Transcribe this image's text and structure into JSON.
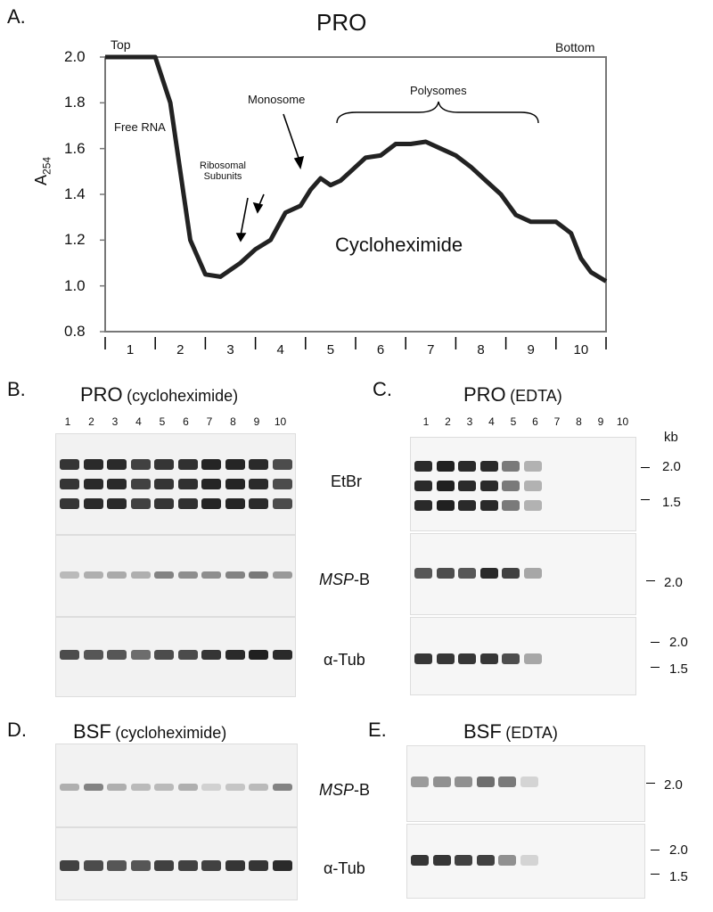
{
  "panelA": {
    "letter": "A.",
    "title": "PRO",
    "top_label": "Top",
    "bottom_label": "Bottom",
    "ylabel_base": "A",
    "ylabel_sub": "254",
    "yticks": [
      "2.0",
      "1.8",
      "1.6",
      "1.4",
      "1.2",
      "1.0",
      "0.8"
    ],
    "fractions": [
      "1",
      "2",
      "3",
      "4",
      "5",
      "6",
      "7",
      "8",
      "9",
      "10"
    ],
    "annotations": {
      "free_rna": "Free RNA",
      "ribosomal_1": "Ribosomal",
      "ribosomal_2": "Subunits",
      "monosome": "Monosome",
      "polysomes": "Polysomes",
      "cycloheximide": "Cycloheximide"
    }
  },
  "chart_data": {
    "type": "line",
    "ylabel": "A254",
    "ylim": [
      0.8,
      2.0
    ],
    "x": [
      0,
      0.5,
      1.0,
      1.3,
      1.5,
      1.7,
      2.0,
      2.3,
      2.7,
      3.0,
      3.3,
      3.6,
      3.9,
      4.1,
      4.3,
      4.5,
      4.7,
      4.9,
      5.2,
      5.5,
      5.8,
      6.1,
      6.4,
      6.7,
      7.0,
      7.3,
      7.6,
      7.9,
      8.2,
      8.5,
      8.7,
      9.0,
      9.3,
      9.5,
      9.7,
      10.0
    ],
    "values": [
      2.0,
      2.0,
      2.0,
      1.8,
      1.5,
      1.2,
      1.05,
      1.04,
      1.1,
      1.16,
      1.2,
      1.32,
      1.35,
      1.42,
      1.47,
      1.44,
      1.46,
      1.5,
      1.56,
      1.57,
      1.62,
      1.62,
      1.63,
      1.6,
      1.57,
      1.52,
      1.46,
      1.4,
      1.31,
      1.28,
      1.28,
      1.28,
      1.23,
      1.12,
      1.06,
      1.02
    ]
  },
  "panelB": {
    "letter": "B.",
    "title": "PRO",
    "condition": "(cycloheximide)",
    "lanes": [
      "1",
      "2",
      "3",
      "4",
      "5",
      "6",
      "7",
      "8",
      "9",
      "10"
    ],
    "probe_etbr": "EtBr",
    "probe_msp_italic": "MSP",
    "probe_msp_rest": "-B",
    "probe_tub": "α-Tub"
  },
  "panelC": {
    "letter": "C.",
    "title": "PRO",
    "condition": "(EDTA)",
    "lanes": [
      "1",
      "2",
      "3",
      "4",
      "5",
      "6",
      "7",
      "8",
      "9",
      "10"
    ],
    "kb": "kb",
    "etbr_markers": [
      "2.0",
      "1.5"
    ],
    "msp_marker": "2.0",
    "tub_markers": [
      "2.0",
      "1.5"
    ]
  },
  "panelD": {
    "letter": "D.",
    "title": "BSF",
    "condition": "(cycloheximide)",
    "probe_msp_italic": "MSP",
    "probe_msp_rest": "-B",
    "probe_tub": "α-Tub"
  },
  "panelE": {
    "letter": "E.",
    "title": "BSF",
    "condition": "(EDTA)",
    "msp_marker": "2.0",
    "tub_markers": [
      "2.0",
      "1.5"
    ]
  }
}
